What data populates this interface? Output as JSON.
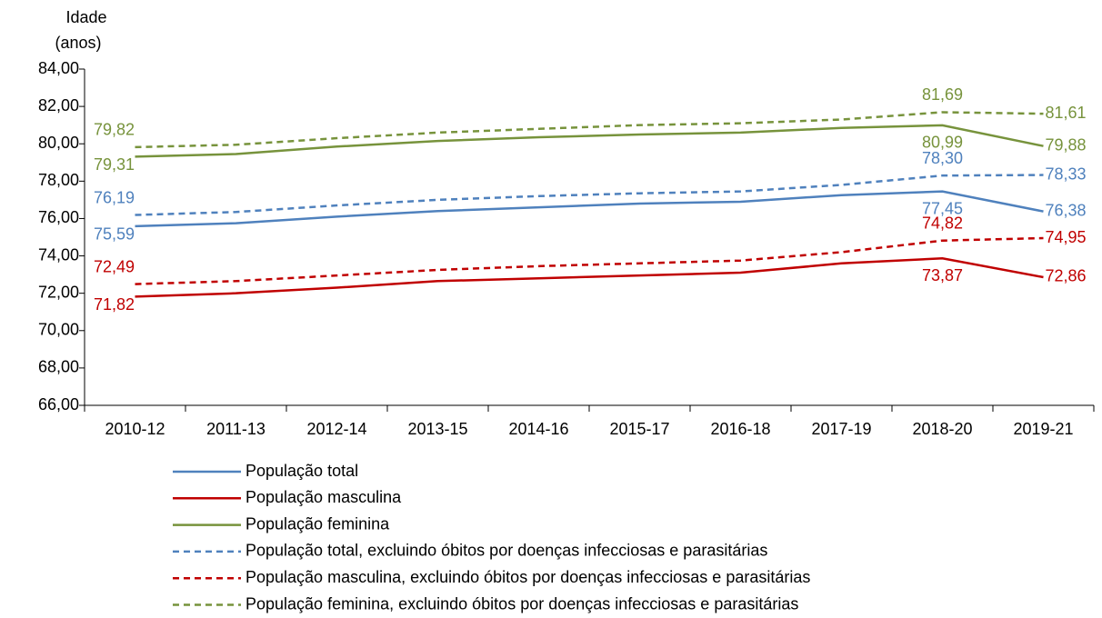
{
  "chart_data": {
    "type": "line",
    "y_label": [
      "Idade",
      "(anos)"
    ],
    "categories": [
      "2010-12",
      "2011-13",
      "2012-14",
      "2013-15",
      "2014-16",
      "2015-17",
      "2016-18",
      "2017-19",
      "2018-20",
      "2019-21"
    ],
    "ylim": [
      66,
      84
    ],
    "yticks": [
      {
        "value": 66,
        "label": "66,00"
      },
      {
        "value": 68,
        "label": "68,00"
      },
      {
        "value": 70,
        "label": "70,00"
      },
      {
        "value": 72,
        "label": "72,00"
      },
      {
        "value": 74,
        "label": "74,00"
      },
      {
        "value": 76,
        "label": "76,00"
      },
      {
        "value": 78,
        "label": "78,00"
      },
      {
        "value": 80,
        "label": "80,00"
      },
      {
        "value": 82,
        "label": "82,00"
      },
      {
        "value": 84,
        "label": "84,00"
      }
    ],
    "series": [
      {
        "name": "População total",
        "color": "#4f81bd",
        "dashed": false,
        "values": [
          75.59,
          75.75,
          76.1,
          76.4,
          76.6,
          76.8,
          76.9,
          77.25,
          77.45,
          76.38
        ],
        "value_labels": [
          "75,59",
          null,
          null,
          null,
          null,
          null,
          null,
          null,
          "77,45",
          "76,38"
        ]
      },
      {
        "name": "População masculina",
        "color": "#c00000",
        "dashed": false,
        "values": [
          71.82,
          72.0,
          72.3,
          72.65,
          72.8,
          72.95,
          73.1,
          73.6,
          73.87,
          72.86
        ],
        "value_labels": [
          "71,82",
          null,
          null,
          null,
          null,
          null,
          null,
          null,
          "73,87",
          "72,86"
        ]
      },
      {
        "name": "População feminina",
        "color": "#77933c",
        "dashed": false,
        "values": [
          79.31,
          79.45,
          79.85,
          80.15,
          80.35,
          80.5,
          80.6,
          80.85,
          80.99,
          79.88
        ],
        "value_labels": [
          "79,31",
          null,
          null,
          null,
          null,
          null,
          null,
          null,
          "80,99",
          "79,88"
        ]
      },
      {
        "name": "População total, excluindo óbitos por doenças infecciosas e parasitárias",
        "color": "#4f81bd",
        "dashed": true,
        "values": [
          76.19,
          76.35,
          76.7,
          77.0,
          77.2,
          77.35,
          77.45,
          77.8,
          78.3,
          78.33
        ],
        "value_labels": [
          "76,19",
          null,
          null,
          null,
          null,
          null,
          null,
          null,
          "78,30",
          "78,33"
        ]
      },
      {
        "name": "População masculina, excluindo óbitos por doenças infecciosas e parasitárias",
        "color": "#c00000",
        "dashed": true,
        "values": [
          72.49,
          72.65,
          72.95,
          73.25,
          73.45,
          73.6,
          73.75,
          74.2,
          74.82,
          74.95
        ],
        "value_labels": [
          "72,49",
          null,
          null,
          null,
          null,
          null,
          null,
          null,
          "74,82",
          "74,95"
        ]
      },
      {
        "name": "População feminina, excluindo óbitos por doenças infecciosas e parasitárias",
        "color": "#77933c",
        "dashed": true,
        "values": [
          79.82,
          79.95,
          80.3,
          80.6,
          80.8,
          81.0,
          81.1,
          81.3,
          81.69,
          81.61
        ],
        "value_labels": [
          "79,82",
          null,
          null,
          null,
          null,
          null,
          null,
          null,
          "81,69",
          "81,61"
        ]
      }
    ]
  }
}
